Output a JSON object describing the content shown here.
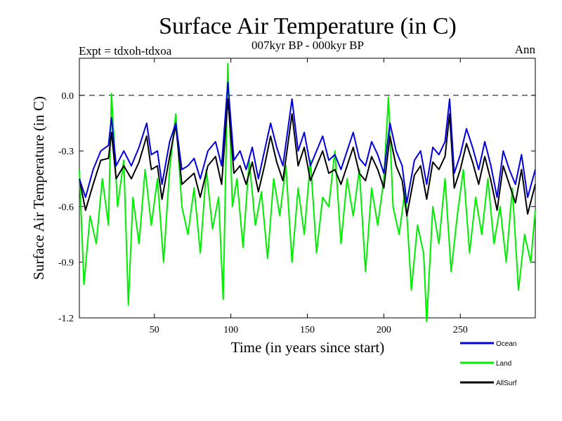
{
  "chart_data": {
    "type": "line",
    "title": "Surface Air Temperature (in C)",
    "subtitle": "007kyr BP - 000kyr BP",
    "left_label": "Expt = tdxoh-tdxoa",
    "right_label": "Ann",
    "xlabel": "Time (in years since start)",
    "ylabel": "Surface Air Temperature (in C)",
    "xlim": [
      1,
      299
    ],
    "ylim": [
      -1.2,
      0.2
    ],
    "xticks": [
      50,
      100,
      150,
      200,
      250
    ],
    "xtick_labels": [
      "50",
      "100",
      "150",
      "200",
      "250"
    ],
    "yticks": [
      0.0,
      -0.3,
      -0.6,
      -0.9,
      -1.2
    ],
    "ytick_labels": [
      "0.0",
      "-0.3",
      "-0.6",
      "-0.9",
      "-1.2"
    ],
    "reference_line": 0.0,
    "legend_placement": "bottom-right",
    "series": [
      {
        "name": "Ocean",
        "color": "#0000dd",
        "x": [
          1,
          5,
          10,
          15,
          20,
          22,
          25,
          30,
          35,
          40,
          45,
          48,
          52,
          55,
          60,
          64,
          68,
          72,
          76,
          80,
          85,
          90,
          94,
          98,
          102,
          106,
          110,
          114,
          118,
          122,
          126,
          130,
          134,
          140,
          144,
          148,
          152,
          156,
          160,
          164,
          168,
          172,
          176,
          180,
          184,
          188,
          192,
          196,
          200,
          204,
          208,
          212,
          215,
          220,
          224,
          228,
          232,
          236,
          240,
          243,
          246,
          250,
          254,
          258,
          262,
          266,
          270,
          274,
          278,
          282,
          286,
          290,
          294,
          299
        ],
        "y": [
          -0.45,
          -0.55,
          -0.4,
          -0.3,
          -0.27,
          -0.12,
          -0.38,
          -0.3,
          -0.38,
          -0.28,
          -0.15,
          -0.32,
          -0.3,
          -0.48,
          -0.25,
          -0.15,
          -0.4,
          -0.38,
          -0.34,
          -0.45,
          -0.3,
          -0.25,
          -0.38,
          0.07,
          -0.35,
          -0.3,
          -0.4,
          -0.28,
          -0.45,
          -0.3,
          -0.15,
          -0.28,
          -0.38,
          -0.02,
          -0.3,
          -0.2,
          -0.38,
          -0.3,
          -0.22,
          -0.35,
          -0.32,
          -0.4,
          -0.3,
          -0.2,
          -0.34,
          -0.38,
          -0.25,
          -0.32,
          -0.42,
          -0.15,
          -0.3,
          -0.38,
          -0.58,
          -0.35,
          -0.3,
          -0.48,
          -0.28,
          -0.32,
          -0.25,
          -0.02,
          -0.42,
          -0.32,
          -0.18,
          -0.28,
          -0.4,
          -0.25,
          -0.38,
          -0.55,
          -0.3,
          -0.4,
          -0.48,
          -0.32,
          -0.55,
          -0.4
        ]
      },
      {
        "name": "Land",
        "color": "#00ee00",
        "x": [
          1,
          4,
          8,
          12,
          16,
          20,
          22,
          26,
          30,
          33,
          36,
          40,
          44,
          48,
          52,
          56,
          60,
          64,
          68,
          72,
          76,
          80,
          84,
          88,
          92,
          95,
          98,
          101,
          104,
          108,
          112,
          116,
          120,
          124,
          128,
          132,
          136,
          140,
          144,
          148,
          152,
          156,
          160,
          164,
          168,
          172,
          176,
          180,
          184,
          188,
          192,
          196,
          200,
          203,
          206,
          210,
          214,
          218,
          222,
          226,
          228,
          232,
          236,
          240,
          244,
          248,
          252,
          256,
          260,
          264,
          268,
          272,
          276,
          280,
          284,
          288,
          292,
          296,
          299
        ],
        "y": [
          -0.4,
          -1.02,
          -0.65,
          -0.8,
          -0.45,
          -0.7,
          0.01,
          -0.6,
          -0.35,
          -1.13,
          -0.55,
          -0.8,
          -0.4,
          -0.7,
          -0.45,
          -0.9,
          -0.4,
          -0.1,
          -0.6,
          -0.75,
          -0.5,
          -0.85,
          -0.4,
          -0.72,
          -0.55,
          -1.1,
          0.17,
          -0.6,
          -0.45,
          -0.82,
          -0.35,
          -0.7,
          -0.52,
          -0.88,
          -0.45,
          -0.65,
          -0.38,
          -0.9,
          -0.5,
          -0.75,
          -0.35,
          -0.85,
          -0.55,
          -0.6,
          -0.3,
          -0.8,
          -0.45,
          -0.65,
          -0.4,
          -0.95,
          -0.5,
          -0.7,
          -0.45,
          -0.01,
          -0.6,
          -0.75,
          -0.5,
          -1.05,
          -0.7,
          -0.85,
          -1.22,
          -0.6,
          -0.8,
          -0.45,
          -0.95,
          -0.65,
          -0.4,
          -0.85,
          -0.55,
          -0.75,
          -0.45,
          -0.8,
          -0.6,
          -0.9,
          -0.5,
          -1.05,
          -0.75,
          -0.9,
          -0.62
        ]
      },
      {
        "name": "AllSurf",
        "color": "#000000",
        "x": [
          1,
          5,
          10,
          15,
          20,
          22,
          25,
          30,
          35,
          40,
          45,
          48,
          52,
          55,
          60,
          64,
          68,
          72,
          76,
          80,
          85,
          90,
          94,
          98,
          102,
          106,
          110,
          114,
          118,
          122,
          126,
          130,
          134,
          140,
          144,
          148,
          152,
          156,
          160,
          164,
          168,
          172,
          176,
          180,
          184,
          188,
          192,
          196,
          200,
          204,
          208,
          212,
          215,
          220,
          224,
          228,
          232,
          236,
          240,
          243,
          246,
          250,
          254,
          258,
          262,
          266,
          270,
          274,
          278,
          282,
          286,
          290,
          294,
          299
        ],
        "y": [
          -0.45,
          -0.62,
          -0.48,
          -0.35,
          -0.34,
          -0.2,
          -0.45,
          -0.38,
          -0.45,
          -0.36,
          -0.22,
          -0.4,
          -0.38,
          -0.56,
          -0.33,
          -0.16,
          -0.48,
          -0.45,
          -0.42,
          -0.55,
          -0.38,
          -0.33,
          -0.48,
          -0.02,
          -0.42,
          -0.38,
          -0.48,
          -0.36,
          -0.52,
          -0.38,
          -0.22,
          -0.36,
          -0.46,
          -0.1,
          -0.38,
          -0.28,
          -0.46,
          -0.38,
          -0.3,
          -0.42,
          -0.4,
          -0.48,
          -0.38,
          -0.28,
          -0.42,
          -0.46,
          -0.33,
          -0.4,
          -0.5,
          -0.22,
          -0.38,
          -0.46,
          -0.65,
          -0.43,
          -0.38,
          -0.56,
          -0.36,
          -0.4,
          -0.33,
          -0.1,
          -0.5,
          -0.4,
          -0.26,
          -0.36,
          -0.48,
          -0.33,
          -0.46,
          -0.62,
          -0.38,
          -0.48,
          -0.58,
          -0.4,
          -0.64,
          -0.48
        ]
      }
    ]
  }
}
